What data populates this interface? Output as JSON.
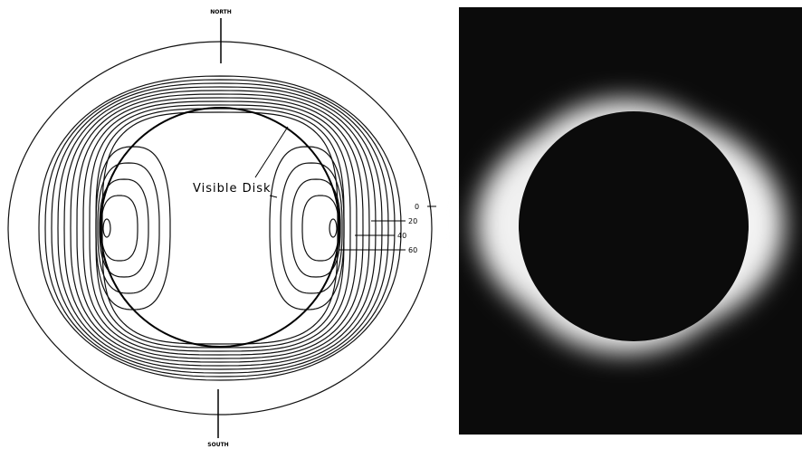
{
  "diagram": {
    "north_label": "NORTH",
    "south_label": "SOUTH",
    "disk_label": "Visible Disk",
    "contour_labels": [
      0,
      20,
      40,
      60
    ]
  }
}
